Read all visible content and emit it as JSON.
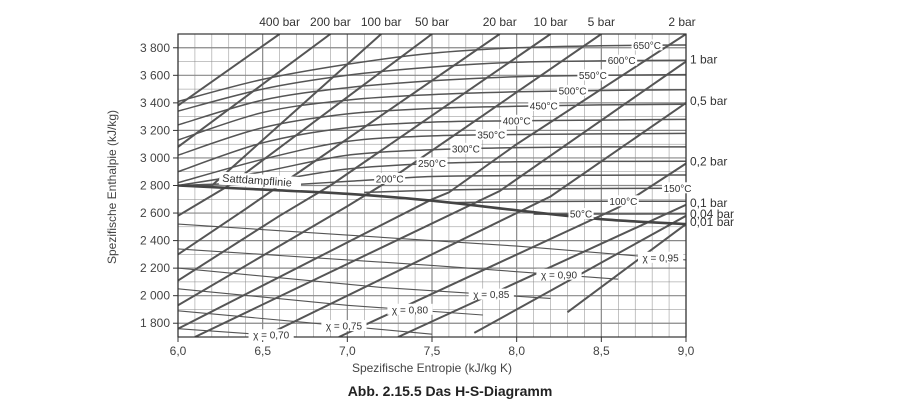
{
  "caption": "Abb. 2.15.5 Das H-S-Diagramm",
  "chart_data": {
    "type": "line",
    "title": "",
    "xlabel": "Spezifische Entropie (kJ/kg K)",
    "ylabel": "Spezifische Enthalpie (kJ/kg)",
    "xlim": [
      6.0,
      9.0
    ],
    "ylim": [
      1700,
      3900
    ],
    "x_ticks": [
      6.0,
      6.5,
      7.0,
      7.5,
      8.0,
      8.5,
      9.0
    ],
    "x_tick_labels": [
      "6,0",
      "6,5",
      "7,0",
      "7,5",
      "8,0",
      "8,5",
      "9,0"
    ],
    "y_ticks": [
      1800,
      2000,
      2200,
      2400,
      2600,
      2800,
      3000,
      3200,
      3400,
      3600,
      3800
    ],
    "y_tick_labels": [
      "1 800",
      "2 000",
      "2 200",
      "2 400",
      "2 600",
      "2 800",
      "3 000",
      "3 200",
      "3 400",
      "3 600",
      "3 800"
    ],
    "grid": true,
    "colors": {
      "line": "#555555",
      "grid": "#888888",
      "frame": "#333333"
    },
    "isobars": [
      {
        "label": "400 bar",
        "label_pos": "top",
        "points": [
          [
            6.0,
            3380
          ],
          [
            6.6,
            3900
          ]
        ]
      },
      {
        "label": "200 bar",
        "label_pos": "top",
        "points": [
          [
            6.0,
            3080
          ],
          [
            6.9,
            3900
          ]
        ]
      },
      {
        "label": "100 bar",
        "label_pos": "top",
        "points": [
          [
            6.0,
            2800
          ],
          [
            6.2,
            2800
          ],
          [
            7.2,
            3900
          ]
        ]
      },
      {
        "label": "50 bar",
        "label_pos": "top",
        "points": [
          [
            6.0,
            2580
          ],
          [
            6.3,
            2800
          ],
          [
            7.5,
            3900
          ]
        ]
      },
      {
        "label": "20 bar",
        "label_pos": "top",
        "points": [
          [
            6.0,
            2300
          ],
          [
            6.4,
            2630
          ],
          [
            6.6,
            2800
          ],
          [
            7.9,
            3900
          ]
        ]
      },
      {
        "label": "10 bar",
        "label_pos": "top",
        "points": [
          [
            6.0,
            2110
          ],
          [
            6.6,
            2580
          ],
          [
            6.9,
            2800
          ],
          [
            8.2,
            3900
          ]
        ]
      },
      {
        "label": "5 bar",
        "label_pos": "top",
        "points": [
          [
            6.0,
            1930
          ],
          [
            7.0,
            2650
          ],
          [
            7.2,
            2800
          ],
          [
            8.5,
            3900
          ]
        ]
      },
      {
        "label": "2 bar",
        "label_pos": "top",
        "points": [
          [
            6.0,
            1760
          ],
          [
            7.5,
            2700
          ],
          [
            7.6,
            2750
          ],
          [
            8.0,
            3100
          ],
          [
            9.0,
            3900
          ]
        ]
      },
      {
        "label": "1 bar",
        "label_pos": "right",
        "points": [
          [
            6.1,
            1700
          ],
          [
            7.9,
            2760
          ],
          [
            9.0,
            3700
          ]
        ]
      },
      {
        "label": "0,5 bar",
        "label_pos": "right",
        "points": [
          [
            6.5,
            1700
          ],
          [
            8.2,
            2720
          ],
          [
            9.0,
            3400
          ]
        ]
      },
      {
        "label": "0,2 bar",
        "label_pos": "right",
        "points": [
          [
            6.95,
            1700
          ],
          [
            8.6,
            2640
          ],
          [
            9.0,
            2960
          ]
        ]
      },
      {
        "label": "0,1 bar",
        "label_pos": "right",
        "points": [
          [
            7.3,
            1700
          ],
          [
            9.0,
            2660
          ],
          [
            9.0,
            2660
          ]
        ]
      },
      {
        "label": "0,04 bar",
        "label_pos": "right",
        "points": [
          [
            7.75,
            1730
          ],
          [
            9.0,
            2580
          ]
        ]
      },
      {
        "label": "0,01 bar",
        "label_pos": "right",
        "points": [
          [
            8.3,
            1880
          ],
          [
            9.0,
            2520
          ]
        ]
      }
    ],
    "isotherms": [
      {
        "label": "650°C",
        "label_x": 8.77,
        "points": [
          [
            6.0,
            3410
          ],
          [
            6.5,
            3570
          ],
          [
            7.0,
            3680
          ],
          [
            7.5,
            3760
          ],
          [
            8.0,
            3800
          ],
          [
            8.5,
            3815
          ],
          [
            9.0,
            3820
          ]
        ]
      },
      {
        "label": "600°C",
        "label_x": 8.62,
        "points": [
          [
            6.0,
            3340
          ],
          [
            6.5,
            3500
          ],
          [
            7.0,
            3600
          ],
          [
            7.5,
            3660
          ],
          [
            8.0,
            3695
          ],
          [
            8.5,
            3705
          ],
          [
            9.0,
            3710
          ]
        ]
      },
      {
        "label": "550°C",
        "label_x": 8.45,
        "points": [
          [
            6.0,
            3240
          ],
          [
            6.5,
            3420
          ],
          [
            7.0,
            3510
          ],
          [
            7.5,
            3560
          ],
          [
            8.0,
            3590
          ],
          [
            8.5,
            3600
          ],
          [
            9.0,
            3605
          ]
        ]
      },
      {
        "label": "500°C",
        "label_x": 8.33,
        "points": [
          [
            6.0,
            3130
          ],
          [
            6.5,
            3330
          ],
          [
            7.0,
            3420
          ],
          [
            7.5,
            3460
          ],
          [
            8.0,
            3480
          ],
          [
            8.5,
            3490
          ],
          [
            9.0,
            3495
          ]
        ]
      },
      {
        "label": "450°C",
        "label_x": 8.16,
        "points": [
          [
            6.0,
            3020
          ],
          [
            6.5,
            3220
          ],
          [
            7.0,
            3320
          ],
          [
            7.5,
            3360
          ],
          [
            8.0,
            3375
          ],
          [
            8.5,
            3385
          ],
          [
            9.0,
            3390
          ]
        ]
      },
      {
        "label": "400°C",
        "label_x": 8.0,
        "points": [
          [
            6.0,
            2900
          ],
          [
            6.5,
            3110
          ],
          [
            7.0,
            3220
          ],
          [
            7.5,
            3260
          ],
          [
            8.0,
            3270
          ],
          [
            8.5,
            3275
          ],
          [
            9.0,
            3280
          ]
        ]
      },
      {
        "label": "350°C",
        "label_x": 7.85,
        "points": [
          [
            6.0,
            2820
          ],
          [
            6.5,
            2990
          ],
          [
            7.0,
            3120
          ],
          [
            7.5,
            3160
          ],
          [
            8.0,
            3170
          ],
          [
            8.5,
            3175
          ],
          [
            9.0,
            3178
          ]
        ]
      },
      {
        "label": "300°C",
        "label_x": 7.7,
        "points": [
          [
            6.0,
            2800
          ],
          [
            6.5,
            2900
          ],
          [
            7.0,
            3020
          ],
          [
            7.5,
            3060
          ],
          [
            8.0,
            3075
          ],
          [
            8.5,
            3080
          ],
          [
            9.0,
            3080
          ]
        ]
      },
      {
        "label": "250°C",
        "label_x": 7.5,
        "points": [
          [
            6.0,
            2800
          ],
          [
            6.5,
            2830
          ],
          [
            7.0,
            2920
          ],
          [
            7.5,
            2960
          ],
          [
            8.0,
            2972
          ],
          [
            8.5,
            2975
          ],
          [
            9.0,
            2976
          ]
        ]
      },
      {
        "label": "200°C",
        "label_x": 7.25,
        "points": [
          [
            6.6,
            2800
          ],
          [
            7.0,
            2830
          ],
          [
            7.5,
            2865
          ],
          [
            8.0,
            2872
          ],
          [
            8.5,
            2875
          ],
          [
            9.0,
            2876
          ]
        ]
      },
      {
        "label": "150°C",
        "label_x": 8.95,
        "points": [
          [
            7.1,
            2750
          ],
          [
            7.5,
            2765
          ],
          [
            8.0,
            2775
          ],
          [
            8.5,
            2778
          ],
          [
            9.0,
            2780
          ]
        ]
      },
      {
        "label": "100°C",
        "label_x": 8.63,
        "points": [
          [
            7.6,
            2676
          ],
          [
            8.0,
            2682
          ],
          [
            8.5,
            2685
          ],
          [
            9.0,
            2686
          ]
        ]
      },
      {
        "label": "50°C",
        "label_x": 8.38,
        "points": [
          [
            8.1,
            2592
          ],
          [
            8.5,
            2593
          ],
          [
            9.0,
            2594
          ]
        ]
      }
    ],
    "quality_lines": [
      {
        "label": "χ = 0,95",
        "label_x": 8.85,
        "points": [
          [
            6.0,
            2520
          ],
          [
            8.0,
            2360
          ],
          [
            9.0,
            2260
          ]
        ]
      },
      {
        "label": "χ = 0,90",
        "label_x": 8.25,
        "points": [
          [
            6.0,
            2340
          ],
          [
            7.5,
            2220
          ],
          [
            8.6,
            2120
          ]
        ]
      },
      {
        "label": "χ = 0,85",
        "label_x": 7.85,
        "points": [
          [
            6.0,
            2200
          ],
          [
            7.2,
            2060
          ],
          [
            8.2,
            1980
          ]
        ]
      },
      {
        "label": "χ = 0,80",
        "label_x": 7.37,
        "points": [
          [
            6.0,
            2050
          ],
          [
            7.0,
            1930
          ],
          [
            7.8,
            1860
          ]
        ]
      },
      {
        "label": "χ = 0,75",
        "label_x": 6.98,
        "points": [
          [
            6.0,
            1890
          ],
          [
            6.8,
            1800
          ],
          [
            7.5,
            1720
          ]
        ]
      },
      {
        "label": "χ = 0,70",
        "label_x": 6.55,
        "points": [
          [
            6.0,
            1760
          ],
          [
            6.7,
            1700
          ]
        ]
      }
    ],
    "saturation_line": {
      "label": "Sattdampflinie",
      "points": [
        [
          6.0,
          2800
        ],
        [
          6.5,
          2770
        ],
        [
          7.0,
          2740
        ],
        [
          7.5,
          2690
        ],
        [
          8.0,
          2620
        ],
        [
          8.5,
          2555
        ],
        [
          9.0,
          2520
        ]
      ]
    }
  }
}
